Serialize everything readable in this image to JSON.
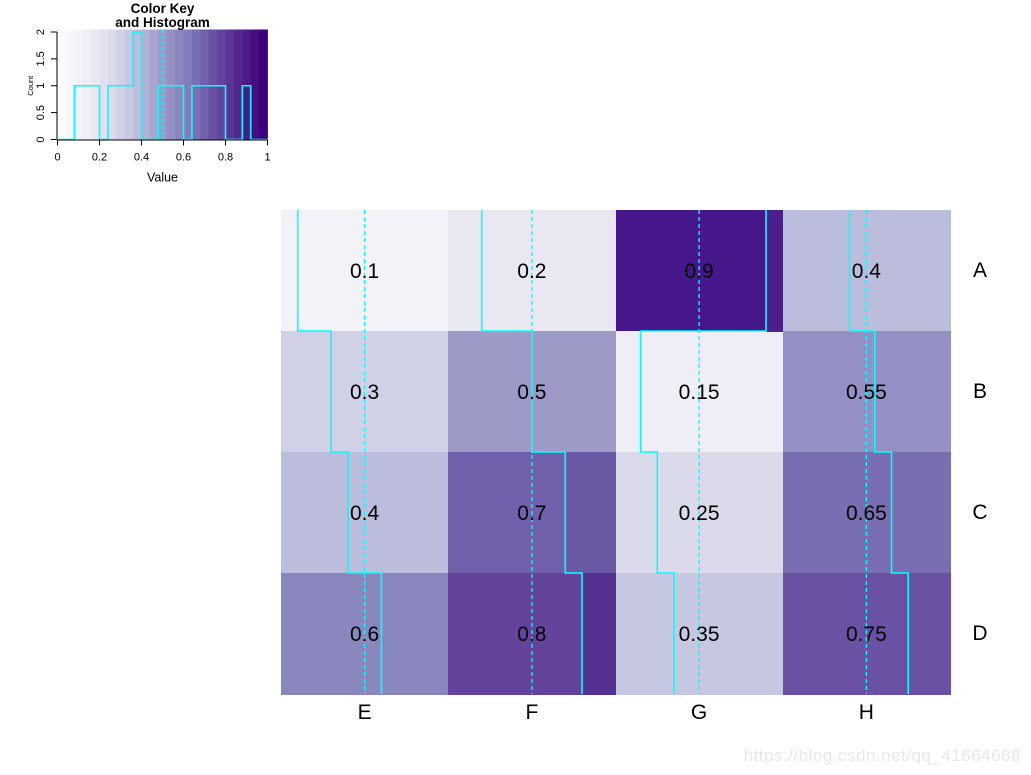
{
  "watermark": {
    "text": "https://blog.csdn.net/qq_41664688",
    "color": "#E8E8E8"
  },
  "chart_data": {
    "type": "heatmap",
    "rows": [
      "A",
      "B",
      "C",
      "D"
    ],
    "columns": [
      "E",
      "F",
      "G",
      "H"
    ],
    "values": [
      [
        0.1,
        0.2,
        0.9,
        0.4
      ],
      [
        0.3,
        0.5,
        0.15,
        0.55
      ],
      [
        0.4,
        0.7,
        0.25,
        0.65
      ],
      [
        0.6,
        0.8,
        0.35,
        0.75
      ]
    ],
    "cell_labels": [
      [
        "0.1",
        "0.2",
        "0.9",
        "0.4"
      ],
      [
        "0.3",
        "0.5",
        "0.15",
        "0.55"
      ],
      [
        "0.4",
        "0.7",
        "0.25",
        "0.65"
      ],
      [
        "0.6",
        "0.8",
        "0.35",
        "0.75"
      ]
    ],
    "value_range": [
      0,
      1
    ],
    "palette": {
      "name": "Purples",
      "stops": [
        "#FCFBFD",
        "#EFEDF5",
        "#DADAEB",
        "#BCBDDC",
        "#9E9AC8",
        "#807DBA",
        "#6A51A3",
        "#54278F",
        "#3F007D"
      ],
      "bins": 25
    },
    "cell_color_overrides": [
      {
        "row": 0,
        "col": 2,
        "color": "#46178A"
      }
    ],
    "shade_overlays": [
      {
        "row": 0,
        "col": 2,
        "from_value": 0.9,
        "color": "#4D1F8B"
      },
      {
        "row": 2,
        "col": 1,
        "from_value": 0.7,
        "color": "#6A59A4"
      },
      {
        "row": 3,
        "col": 1,
        "from_value": 0.8,
        "color": "#543093"
      }
    ],
    "trace": {
      "type": "column",
      "color": "#00FFFF",
      "center_line_value": 0.5,
      "center_line_style": "dashed"
    },
    "text_color": "#000000",
    "color_key": {
      "title_line1": "Color Key",
      "title_line2": "and Histogram",
      "xlabel": "Value",
      "ylabel": "Count",
      "x_ticks": [
        "0",
        "0.2",
        "0.4",
        "0.6",
        "0.8",
        "1"
      ],
      "x_tick_values": [
        0,
        0.2,
        0.4,
        0.6,
        0.8,
        1
      ],
      "y_ticks": [
        "0",
        "0.5",
        "1",
        "1.5",
        "2"
      ],
      "y_tick_values": [
        0,
        0.5,
        1,
        1.5,
        2
      ],
      "y_max": 2,
      "histogram_color": "#00FFFF",
      "vline_value": 0.5,
      "histogram_segments_value_count": [
        [
          0,
          0.08,
          0
        ],
        [
          0.08,
          0.2,
          1
        ],
        [
          0.2,
          0.24,
          0
        ],
        [
          0.24,
          0.36,
          1
        ],
        [
          0.36,
          0.4,
          2
        ],
        [
          0.4,
          0.48,
          0
        ],
        [
          0.48,
          0.6,
          1
        ],
        [
          0.6,
          0.64,
          0
        ],
        [
          0.64,
          0.8,
          1
        ],
        [
          0.8,
          0.88,
          0
        ],
        [
          0.88,
          0.92,
          1
        ],
        [
          0.92,
          1,
          0
        ]
      ]
    }
  }
}
